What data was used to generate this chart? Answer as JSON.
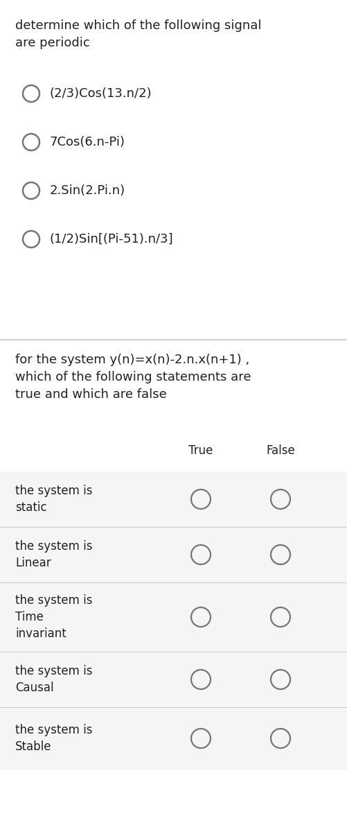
{
  "bg_color": "#ffffff",
  "section1_title": "determine which of the following signal\nare periodic",
  "section1_options": [
    "(2/3)Cos(13.n/2)",
    "7Cos(6.n-Pi)",
    "2.Sin(2.Pi.n)",
    "(1/2)Sin[(Pi-51).n/3]"
  ],
  "section2_title": "for the system y(n)=x(n)-2.n.x(n+1) ,\nwhich of the following statements are\ntrue and which are false",
  "col_true": "True",
  "col_false": "False",
  "table_rows": [
    "the system is\nstatic",
    "the system is\nLinear",
    "the system is\nTime\ninvariant",
    "the system is\nCausal",
    "the system is\nStable"
  ],
  "text_color": "#212121",
  "circle_color": "#757575",
  "divider_color": "#d0d0d8",
  "row_bg": "#f5f5f5",
  "font_size_main": 13,
  "font_size_option": 13,
  "font_size_table": 12
}
